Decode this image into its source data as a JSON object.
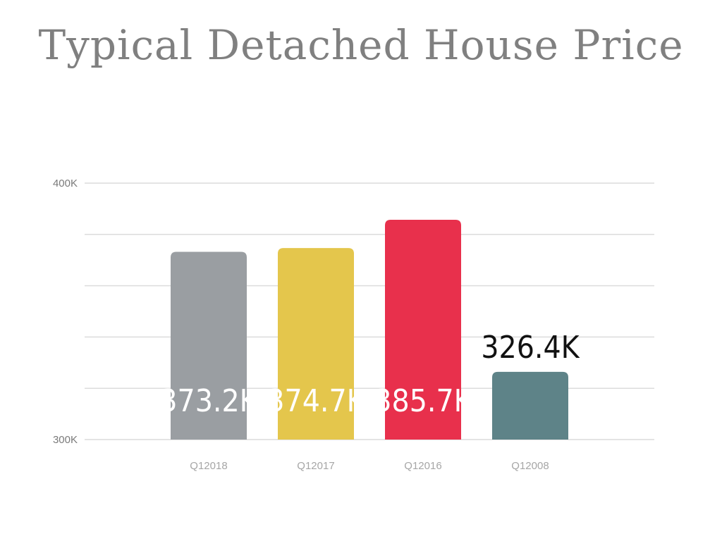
{
  "chart_data": {
    "type": "bar",
    "title": "Typical Detached House Price",
    "categories": [
      "Q12018",
      "Q12017",
      "Q12016",
      "Q12008"
    ],
    "values": [
      373.2,
      374.7,
      385.7,
      326.4
    ],
    "value_labels": [
      "373.2K",
      "374.7K",
      "385.7K",
      "326.4K"
    ],
    "colors": [
      "#9a9ea2",
      "#e4c64c",
      "#e8304c",
      "#5e8388"
    ],
    "ylim": [
      300,
      400
    ],
    "y_ticks": [
      {
        "value": 300,
        "label": "300K"
      },
      {
        "value": 400,
        "label": "400K"
      }
    ],
    "gridlines": [
      300,
      320,
      340,
      360,
      380,
      400
    ],
    "grid": true,
    "xlabel": "",
    "ylabel": ""
  }
}
